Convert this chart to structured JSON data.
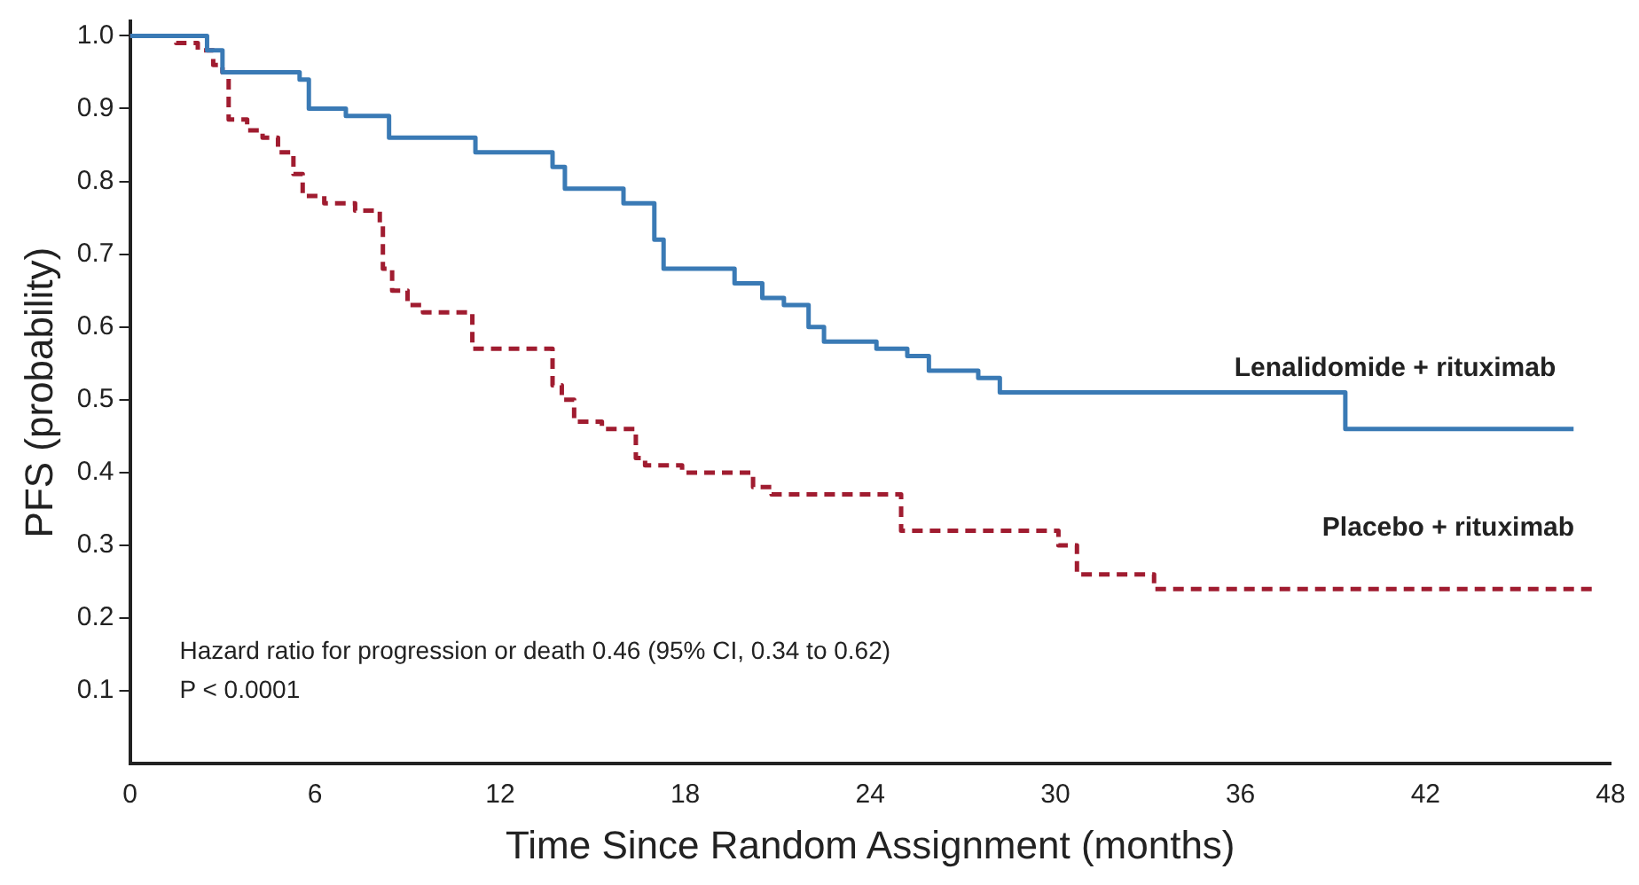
{
  "chart_data": {
    "type": "step",
    "xlabel": "Time Since Random Assignment (months)",
    "ylabel": "PFS (probability)",
    "xlim": [
      0,
      48
    ],
    "xticks": [
      0,
      6,
      12,
      18,
      24,
      30,
      36,
      42,
      48
    ],
    "ylim": [
      0,
      1.02
    ],
    "yticks": [
      {
        "value": 0.1,
        "label": "0.1"
      },
      {
        "value": 0.2,
        "label": "0.2"
      },
      {
        "value": 0.3,
        "label": "0.3"
      },
      {
        "value": 0.4,
        "label": "0.4"
      },
      {
        "value": 0.5,
        "label": "0.5"
      },
      {
        "value": 0.6,
        "label": "0.6"
      },
      {
        "value": 0.7,
        "label": "0.7"
      },
      {
        "value": 0.8,
        "label": "0.8"
      },
      {
        "value": 0.9,
        "label": "0.9"
      },
      {
        "value": 1.0,
        "label": "1.0"
      }
    ],
    "grid": false,
    "legend": false,
    "series": [
      {
        "name": "Lenalidomide + rituximab",
        "color": "#3a7ab5",
        "line_style": "solid",
        "x": [
          0,
          2.5,
          3,
          5.5,
          5.8,
          7,
          8.4,
          11.2,
          13.7,
          14.1,
          16,
          17,
          17.3,
          19.6,
          20.5,
          21.2,
          22,
          22.5,
          24.2,
          25.2,
          25.9,
          27.5,
          28.2,
          39.4,
          46.8
        ],
        "values": [
          1.0,
          0.98,
          0.95,
          0.94,
          0.9,
          0.89,
          0.86,
          0.84,
          0.82,
          0.79,
          0.77,
          0.72,
          0.68,
          0.66,
          0.64,
          0.63,
          0.6,
          0.58,
          0.57,
          0.56,
          0.54,
          0.53,
          0.51,
          0.46,
          0.46
        ]
      },
      {
        "name": "Placebo + rituximab",
        "color": "#a01c30",
        "line_style": "dashed",
        "x": [
          0,
          1.5,
          2.2,
          2.7,
          3,
          3.2,
          3.8,
          4.3,
          4.8,
          5.3,
          5.6,
          6.3,
          7.3,
          8.1,
          8.2,
          8.5,
          9,
          9.5,
          11.1,
          13.7,
          14,
          14.4,
          15.3,
          16.4,
          16.7,
          17.3,
          17.9,
          20.2,
          20.8,
          25,
          30.1,
          30.7,
          33.2,
          47.4
        ],
        "values": [
          1.0,
          0.99,
          0.98,
          0.96,
          0.95,
          0.885,
          0.87,
          0.86,
          0.84,
          0.81,
          0.78,
          0.77,
          0.76,
          0.74,
          0.68,
          0.65,
          0.63,
          0.62,
          0.57,
          0.52,
          0.5,
          0.47,
          0.46,
          0.42,
          0.41,
          0.41,
          0.4,
          0.38,
          0.37,
          0.32,
          0.3,
          0.26,
          0.24,
          0.24
        ]
      }
    ],
    "annotations": [
      "Hazard ratio for progression or death 0.46 (95% CI, 0.34 to 0.62)",
      "P < 0.0001"
    ]
  }
}
